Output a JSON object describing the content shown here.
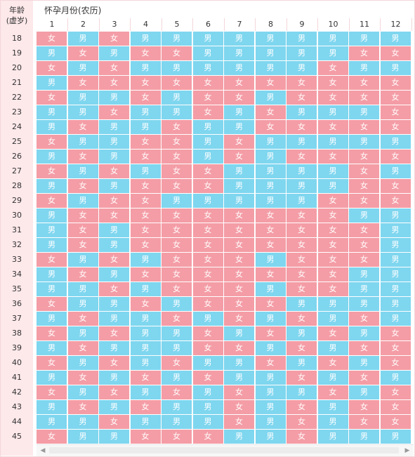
{
  "header": {
    "age_line1": "年龄",
    "age_line2": "(虚岁)",
    "month_title": "怀孕月份(农历)"
  },
  "months": [
    "1",
    "2",
    "3",
    "4",
    "5",
    "6",
    "7",
    "8",
    "9",
    "10",
    "11",
    "12"
  ],
  "colors": {
    "male": "#7fd6ef",
    "female": "#f49da6",
    "header_bg": "#fde8ea"
  },
  "rows": [
    {
      "age": "18",
      "cells": [
        "女",
        "男",
        "女",
        "男",
        "男",
        "男",
        "男",
        "男",
        "男",
        "男",
        "男",
        "男"
      ]
    },
    {
      "age": "19",
      "cells": [
        "男",
        "女",
        "男",
        "女",
        "女",
        "男",
        "男",
        "男",
        "男",
        "男",
        "女",
        "女"
      ]
    },
    {
      "age": "20",
      "cells": [
        "女",
        "男",
        "女",
        "男",
        "男",
        "男",
        "男",
        "男",
        "男",
        "女",
        "男",
        "男"
      ]
    },
    {
      "age": "21",
      "cells": [
        "男",
        "女",
        "女",
        "女",
        "女",
        "女",
        "女",
        "女",
        "女",
        "女",
        "女",
        "女"
      ]
    },
    {
      "age": "22",
      "cells": [
        "女",
        "男",
        "男",
        "女",
        "男",
        "女",
        "女",
        "男",
        "女",
        "女",
        "女",
        "女"
      ]
    },
    {
      "age": "23",
      "cells": [
        "男",
        "男",
        "女",
        "男",
        "男",
        "女",
        "男",
        "女",
        "男",
        "男",
        "男",
        "女"
      ]
    },
    {
      "age": "24",
      "cells": [
        "男",
        "女",
        "男",
        "男",
        "女",
        "男",
        "男",
        "女",
        "女",
        "女",
        "女",
        "女"
      ]
    },
    {
      "age": "25",
      "cells": [
        "女",
        "男",
        "男",
        "女",
        "女",
        "男",
        "女",
        "男",
        "男",
        "男",
        "男",
        "男"
      ]
    },
    {
      "age": "26",
      "cells": [
        "男",
        "女",
        "男",
        "女",
        "女",
        "男",
        "女",
        "男",
        "女",
        "女",
        "女",
        "女"
      ]
    },
    {
      "age": "27",
      "cells": [
        "女",
        "男",
        "女",
        "男",
        "女",
        "女",
        "男",
        "男",
        "男",
        "男",
        "女",
        "男"
      ]
    },
    {
      "age": "28",
      "cells": [
        "男",
        "女",
        "男",
        "女",
        "女",
        "女",
        "男",
        "男",
        "男",
        "男",
        "女",
        "女"
      ]
    },
    {
      "age": "29",
      "cells": [
        "女",
        "男",
        "女",
        "女",
        "男",
        "男",
        "男",
        "男",
        "男",
        "女",
        "女",
        "女"
      ]
    },
    {
      "age": "30",
      "cells": [
        "男",
        "女",
        "女",
        "女",
        "女",
        "女",
        "女",
        "女",
        "女",
        "女",
        "男",
        "男"
      ]
    },
    {
      "age": "31",
      "cells": [
        "男",
        "女",
        "男",
        "女",
        "女",
        "女",
        "女",
        "女",
        "女",
        "女",
        "女",
        "男"
      ]
    },
    {
      "age": "32",
      "cells": [
        "男",
        "女",
        "男",
        "女",
        "女",
        "女",
        "女",
        "女",
        "女",
        "女",
        "女",
        "男"
      ]
    },
    {
      "age": "33",
      "cells": [
        "女",
        "男",
        "女",
        "男",
        "女",
        "女",
        "女",
        "男",
        "女",
        "女",
        "女",
        "男"
      ]
    },
    {
      "age": "34",
      "cells": [
        "男",
        "女",
        "男",
        "女",
        "女",
        "女",
        "女",
        "女",
        "女",
        "女",
        "男",
        "男"
      ]
    },
    {
      "age": "35",
      "cells": [
        "男",
        "男",
        "女",
        "男",
        "女",
        "女",
        "女",
        "男",
        "女",
        "女",
        "男",
        "男"
      ]
    },
    {
      "age": "36",
      "cells": [
        "女",
        "男",
        "男",
        "女",
        "男",
        "女",
        "女",
        "女",
        "男",
        "男",
        "男",
        "男"
      ]
    },
    {
      "age": "37",
      "cells": [
        "男",
        "女",
        "男",
        "男",
        "女",
        "男",
        "女",
        "男",
        "女",
        "男",
        "女",
        "男"
      ]
    },
    {
      "age": "38",
      "cells": [
        "女",
        "男",
        "女",
        "男",
        "男",
        "女",
        "男",
        "女",
        "男",
        "女",
        "男",
        "女"
      ]
    },
    {
      "age": "39",
      "cells": [
        "男",
        "女",
        "男",
        "男",
        "男",
        "女",
        "女",
        "男",
        "女",
        "男",
        "女",
        "女"
      ]
    },
    {
      "age": "40",
      "cells": [
        "女",
        "男",
        "女",
        "男",
        "女",
        "男",
        "男",
        "女",
        "男",
        "女",
        "男",
        "女"
      ]
    },
    {
      "age": "41",
      "cells": [
        "男",
        "女",
        "男",
        "女",
        "男",
        "女",
        "男",
        "男",
        "女",
        "男",
        "女",
        "男"
      ]
    },
    {
      "age": "42",
      "cells": [
        "女",
        "男",
        "女",
        "男",
        "女",
        "男",
        "女",
        "男",
        "男",
        "女",
        "男",
        "女"
      ]
    },
    {
      "age": "43",
      "cells": [
        "男",
        "女",
        "男",
        "女",
        "男",
        "男",
        "女",
        "男",
        "女",
        "男",
        "女",
        "女"
      ]
    },
    {
      "age": "44",
      "cells": [
        "男",
        "男",
        "女",
        "男",
        "男",
        "男",
        "女",
        "男",
        "女",
        "男",
        "女",
        "女"
      ]
    },
    {
      "age": "45",
      "cells": [
        "女",
        "男",
        "男",
        "女",
        "女",
        "女",
        "男",
        "男",
        "女",
        "男",
        "男",
        "男"
      ]
    }
  ]
}
